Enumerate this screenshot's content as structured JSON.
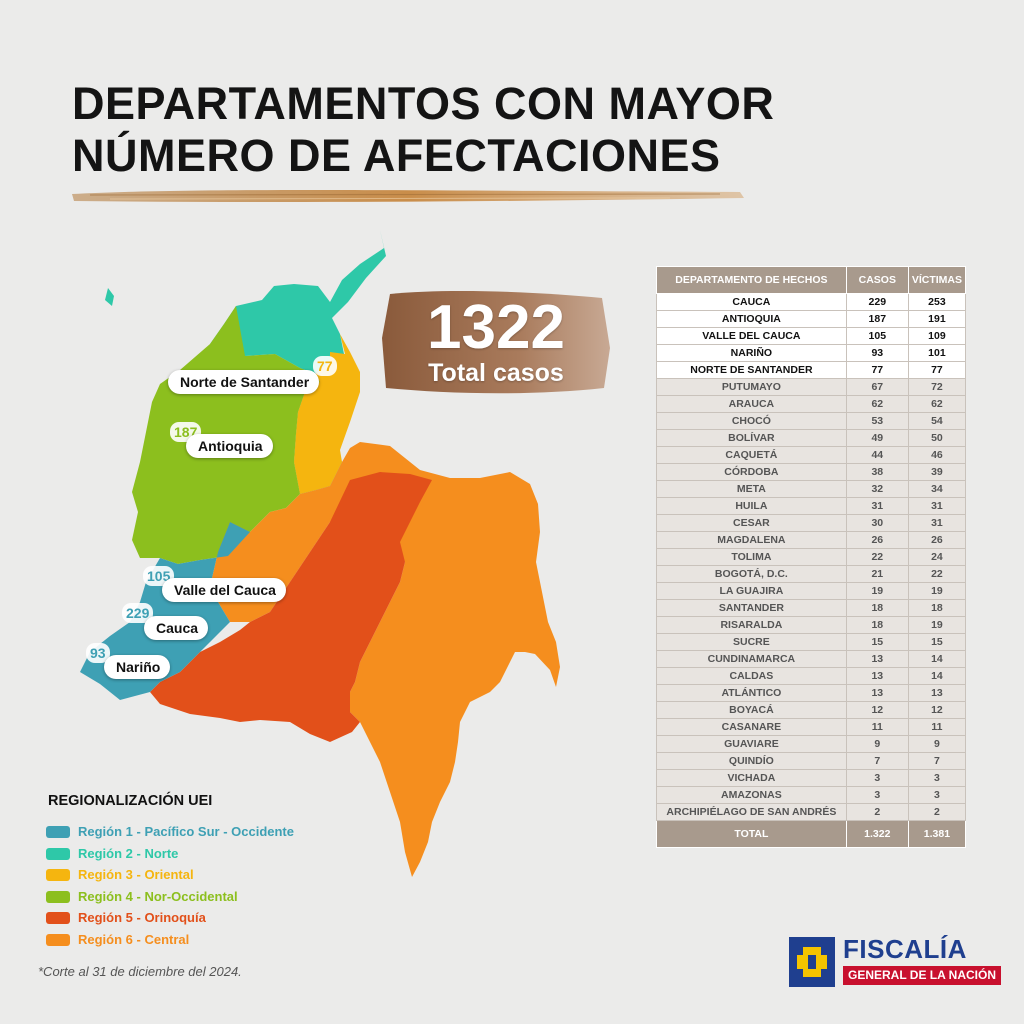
{
  "title": {
    "line1": "DEPARTAMENTOS CON MAYOR",
    "line2": "NÚMERO DE AFECTACIONES"
  },
  "total": {
    "value": "1322",
    "label": "Total casos"
  },
  "map_callouts": [
    {
      "name": "Norte de Santander",
      "value": "77"
    },
    {
      "name": "Antioquia",
      "value": "187"
    },
    {
      "name": "Valle del Cauca",
      "value": "105"
    },
    {
      "name": "Cauca",
      "value": "229"
    },
    {
      "name": "Nariño",
      "value": "93"
    }
  ],
  "table": {
    "headers": {
      "department": "DEPARTAMENTO DE HECHOS",
      "cases": "CASOS",
      "victims": "VÍCTIMAS"
    },
    "rows": [
      {
        "department": "CAUCA",
        "cases": "229",
        "victims": "253"
      },
      {
        "department": "ANTIOQUIA",
        "cases": "187",
        "victims": "191"
      },
      {
        "department": "VALLE DEL CAUCA",
        "cases": "105",
        "victims": "109"
      },
      {
        "department": "NARIÑO",
        "cases": "93",
        "victims": "101"
      },
      {
        "department": "NORTE DE SANTANDER",
        "cases": "77",
        "victims": "77"
      },
      {
        "department": "PUTUMAYO",
        "cases": "67",
        "victims": "72"
      },
      {
        "department": "ARAUCA",
        "cases": "62",
        "victims": "62"
      },
      {
        "department": "CHOCÓ",
        "cases": "53",
        "victims": "54"
      },
      {
        "department": "BOLÍVAR",
        "cases": "49",
        "victims": "50"
      },
      {
        "department": "CAQUETÁ",
        "cases": "44",
        "victims": "46"
      },
      {
        "department": "CÓRDOBA",
        "cases": "38",
        "victims": "39"
      },
      {
        "department": "META",
        "cases": "32",
        "victims": "34"
      },
      {
        "department": "HUILA",
        "cases": "31",
        "victims": "31"
      },
      {
        "department": "CESAR",
        "cases": "30",
        "victims": "31"
      },
      {
        "department": "MAGDALENA",
        "cases": "26",
        "victims": "26"
      },
      {
        "department": "TOLIMA",
        "cases": "22",
        "victims": "24"
      },
      {
        "department": "BOGOTÁ, D.C.",
        "cases": "21",
        "victims": "22"
      },
      {
        "department": "LA GUAJIRA",
        "cases": "19",
        "victims": "19"
      },
      {
        "department": "SANTANDER",
        "cases": "18",
        "victims": "18"
      },
      {
        "department": "RISARALDA",
        "cases": "18",
        "victims": "19"
      },
      {
        "department": "SUCRE",
        "cases": "15",
        "victims": "15"
      },
      {
        "department": "CUNDINAMARCA",
        "cases": "13",
        "victims": "14"
      },
      {
        "department": "CALDAS",
        "cases": "13",
        "victims": "14"
      },
      {
        "department": "ATLÁNTICO",
        "cases": "13",
        "victims": "13"
      },
      {
        "department": "BOYACÁ",
        "cases": "12",
        "victims": "12"
      },
      {
        "department": "CASANARE",
        "cases": "11",
        "victims": "11"
      },
      {
        "department": "GUAVIARE",
        "cases": "9",
        "victims": "9"
      },
      {
        "department": "QUINDÍO",
        "cases": "7",
        "victims": "7"
      },
      {
        "department": "VICHADA",
        "cases": "3",
        "victims": "3"
      },
      {
        "department": "AMAZONAS",
        "cases": "3",
        "victims": "3"
      },
      {
        "department": "ARCHIPIÉLAGO DE SAN ANDRÉS",
        "cases": "2",
        "victims": "2"
      }
    ],
    "total": {
      "label": "TOTAL",
      "cases": "1.322",
      "victims": "1.381"
    }
  },
  "legend": {
    "title": "REGIONALIZACIÓN UEI",
    "items": [
      {
        "label": "Región 1 - Pacífico Sur - Occidente",
        "color": "#3ea0b4"
      },
      {
        "label": "Región 2 - Norte",
        "color": "#2ec8a8"
      },
      {
        "label": "Región 3 - Oriental",
        "color": "#f5b50f"
      },
      {
        "label": "Región 4 - Nor-Occidental",
        "color": "#8cbf1e"
      },
      {
        "label": "Región 5 -  Orinoquía",
        "color": "#e2501a"
      },
      {
        "label": "Región 6 -  Central",
        "color": "#f58e1e"
      }
    ]
  },
  "footnote": "*Corte al 31 de diciembre del 2024.",
  "logo": {
    "name": "FISCALÍA",
    "subtitle": "GENERAL DE LA NACIÓN"
  }
}
